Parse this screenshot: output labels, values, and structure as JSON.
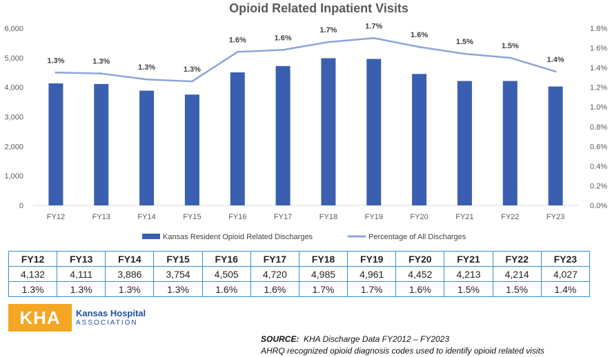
{
  "chart_data": {
    "type": "bar+line",
    "title": "Opioid Related Inpatient Visits",
    "categories": [
      "FY12",
      "FY13",
      "FY14",
      "FY15",
      "FY16",
      "FY17",
      "FY18",
      "FY19",
      "FY20",
      "FY21",
      "FY22",
      "FY23"
    ],
    "series": [
      {
        "name": "Kansas Resident Opioid Related Discharges",
        "type": "bar",
        "axis": "left",
        "color": "#3a5fb0",
        "values": [
          4132,
          4111,
          3886,
          3754,
          4505,
          4720,
          4985,
          4961,
          4452,
          4213,
          4214,
          4027
        ]
      },
      {
        "name": "Percentage of All Discharges",
        "type": "line",
        "axis": "right",
        "color": "#8ea4d8",
        "values": [
          1.35,
          1.34,
          1.28,
          1.26,
          1.56,
          1.58,
          1.66,
          1.7,
          1.61,
          1.54,
          1.5,
          1.36
        ],
        "labels": [
          "1.3%",
          "1.3%",
          "1.3%",
          "1.3%",
          "1.6%",
          "1.6%",
          "1.7%",
          "1.7%",
          "1.6%",
          "1.5%",
          "1.5%",
          "1.4%"
        ]
      }
    ],
    "ylim_left": [
      0,
      6000
    ],
    "yticks_left": [
      "0",
      "1,000",
      "2,000",
      "3,000",
      "4,000",
      "5,000",
      "6,000"
    ],
    "ylim_right": [
      0,
      1.8
    ],
    "yticks_right": [
      "0.0%",
      "0.2%",
      "0.4%",
      "0.6%",
      "0.8%",
      "1.0%",
      "1.2%",
      "1.4%",
      "1.6%",
      "1.8%"
    ],
    "grid": false,
    "legend": "bottom"
  },
  "table": {
    "headers": [
      "FY12",
      "FY13",
      "FY14",
      "FY15",
      "FY16",
      "FY17",
      "FY18",
      "FY19",
      "FY20",
      "FY21",
      "FY22",
      "FY23"
    ],
    "counts": [
      "4,132",
      "4,111",
      "3,886",
      "3,754",
      "4,505",
      "4,720",
      "4,985",
      "4,961",
      "4,452",
      "4,213",
      "4,214",
      "4,027"
    ],
    "percents": [
      "1.3%",
      "1.3%",
      "1.3%",
      "1.3%",
      "1.6%",
      "1.6%",
      "1.7%",
      "1.7%",
      "1.6%",
      "1.5%",
      "1.5%",
      "1.4%"
    ]
  },
  "logo": {
    "mark": "KHA",
    "line1": "Kansas Hospital",
    "line2": "ASSOCIATION",
    "color": "#f5a623"
  },
  "source": {
    "label": "SOURCE:",
    "line1": "KHA Discharge Data FY2012 – FY2023",
    "line2": "AHRQ recognized opioid diagnosis codes used to identify opioid related visits"
  }
}
